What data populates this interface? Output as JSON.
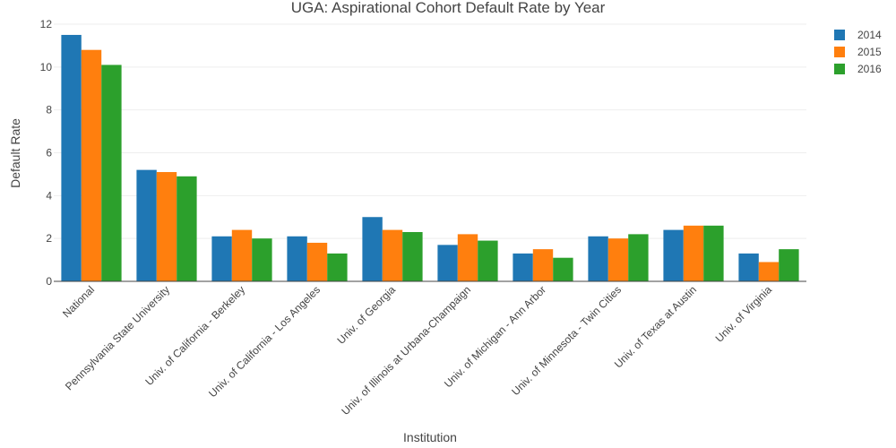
{
  "chart_data": {
    "type": "bar",
    "title": "UGA: Aspirational Cohort Default Rate by Year",
    "xlabel": "Institution",
    "ylabel": "Default Rate",
    "ylim": [
      0,
      12
    ],
    "yticks": [
      0,
      2,
      4,
      6,
      8,
      10,
      12
    ],
    "grid": true,
    "legend_position": "top-right",
    "categories": [
      "National",
      "Pennsylvania State University",
      "Univ. of California - Berkeley",
      "Univ. of California - Los Angeles",
      "Univ. of Georgia",
      "Univ. of Illinois at Urbana-Champaign",
      "Univ. of Michigan - Ann Arbor",
      "Univ. of Minnesota - Twin Cities",
      "Univ. of Texas at Austin",
      "Univ. of Virginia"
    ],
    "series": [
      {
        "name": "2014",
        "color": "#1f77b4",
        "values": [
          11.5,
          5.2,
          2.1,
          2.1,
          3.0,
          1.7,
          1.3,
          2.1,
          2.4,
          1.3
        ]
      },
      {
        "name": "2015",
        "color": "#ff7f0e",
        "values": [
          10.8,
          5.1,
          2.4,
          1.8,
          2.4,
          2.2,
          1.5,
          2.0,
          2.6,
          0.9
        ]
      },
      {
        "name": "2016",
        "color": "#2ca02c",
        "values": [
          10.1,
          4.9,
          2.0,
          1.3,
          2.3,
          1.9,
          1.1,
          2.2,
          2.6,
          1.5
        ]
      }
    ]
  }
}
